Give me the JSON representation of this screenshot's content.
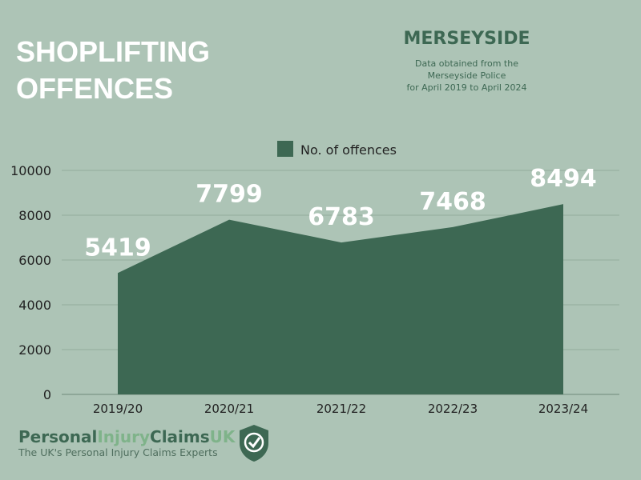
{
  "header": {
    "title_line1": "SHOPLIFTING",
    "title_line2": "OFFENCES",
    "region": "MERSEYSIDE",
    "source_line1": "Data obtained from the",
    "source_line2": "Merseyside Police",
    "source_line3": "for April 2019 to April 2024"
  },
  "chart_data": {
    "type": "area",
    "categories": [
      "2019/20",
      "2020/21",
      "2021/22",
      "2022/23",
      "2023/24"
    ],
    "series": [
      {
        "name": "No. of offences",
        "values": [
          5419,
          7799,
          6783,
          7468,
          8494
        ]
      }
    ],
    "ylim": [
      0,
      10000
    ],
    "yticks": [
      0,
      2000,
      4000,
      6000,
      8000,
      10000
    ],
    "grid": true,
    "legend": "top",
    "color": "#3d6853",
    "data_labels": true
  },
  "footer": {
    "brand_part1": "Personal",
    "brand_part2": "Injury",
    "brand_part3": "Claims",
    "brand_part4": "UK",
    "tagline": "The UK's Personal Injury Claims Experts",
    "logo_icon": "shield-check-icon"
  }
}
